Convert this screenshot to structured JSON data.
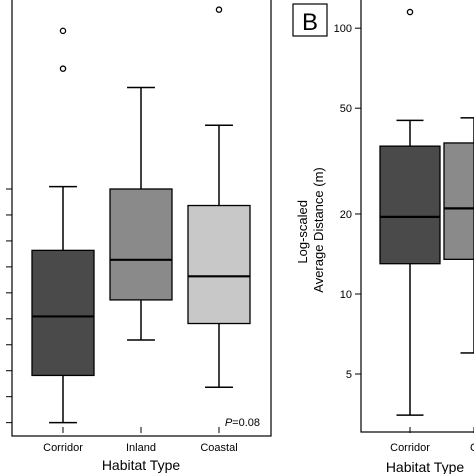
{
  "chart_data": [
    {
      "type": "box",
      "panel_letter": "",
      "xlabel": "Habitat Type",
      "ylabel": "",
      "categories": [
        "Corridor",
        "Inland",
        "Coastal"
      ],
      "box_colors": [
        "#4a4a4a",
        "#8a8a8a",
        "#c8c8c8"
      ],
      "annotation": {
        "prefix": "P",
        "text": "=0.08"
      },
      "series": [
        {
          "whisker_low": 1.1,
          "q1": 3.1,
          "median": 5.6,
          "q3": 8.4,
          "whisker_high": 11.1,
          "outliers": [
            17.7,
            16.1
          ]
        },
        {
          "whisker_low": 4.6,
          "q1": 6.3,
          "median": 8.0,
          "q3": 11.0,
          "whisker_high": 15.3,
          "outliers": []
        },
        {
          "whisker_low": 2.6,
          "q1": 5.3,
          "median": 7.3,
          "q3": 10.3,
          "whisker_high": 13.7,
          "outliers": [
            18.6
          ]
        }
      ]
    },
    {
      "type": "box",
      "panel_letter": "B",
      "ylabel_lines": [
        "Log-scaled",
        "Average Distance  (m)"
      ],
      "xlabel": "Habitat Type",
      "y_scale": "log",
      "yticks": [
        5,
        10,
        20,
        50,
        100
      ],
      "categories": [
        "Corridor",
        "C"
      ],
      "box_colors": [
        "#4a4a4a",
        "#8a8a8a"
      ],
      "series": [
        {
          "whisker_low": 3.5,
          "q1": 13,
          "median": 19.5,
          "q3": 36,
          "whisker_high": 45,
          "outliers": [
            115
          ]
        },
        {
          "whisker_low": 6,
          "q1": 13.5,
          "median": 21,
          "q3": 37,
          "whisker_high": 46,
          "outliers": []
        }
      ]
    }
  ]
}
